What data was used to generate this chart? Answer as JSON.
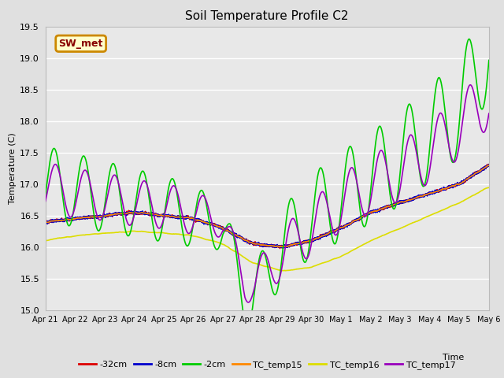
{
  "title": "Soil Temperature Profile C2",
  "xlabel": "Time",
  "ylabel": "Temperature (C)",
  "ylim": [
    15.0,
    19.5
  ],
  "xlim": [
    0,
    360
  ],
  "background_color": "#e0e0e0",
  "plot_bg_color": "#e8e8e8",
  "grid_color": "#ffffff",
  "annotation_text": "SW_met",
  "annotation_bg": "#ffffcc",
  "annotation_border": "#cc8800",
  "annotation_text_color": "#880000",
  "tick_labels": [
    "Apr 21",
    "Apr 22",
    "Apr 23",
    "Apr 24",
    "Apr 25",
    "Apr 26",
    "Apr 27",
    "Apr 28",
    "Apr 29",
    "Apr 30",
    "May 1",
    "May 2",
    "May 3",
    "May 4",
    "May 5",
    "May 6"
  ],
  "tick_positions": [
    0,
    24,
    48,
    72,
    96,
    120,
    144,
    168,
    192,
    216,
    240,
    264,
    288,
    312,
    336,
    360
  ],
  "series": {
    "neg32cm": {
      "color": "#dd0000",
      "label": "-32cm",
      "linewidth": 1.2
    },
    "neg8cm": {
      "color": "#0000cc",
      "label": "-8cm",
      "linewidth": 1.2
    },
    "neg2cm": {
      "color": "#00cc00",
      "label": "-2cm",
      "linewidth": 1.2
    },
    "TC15": {
      "color": "#ff8800",
      "label": "TC_temp15",
      "linewidth": 1.2
    },
    "TC16": {
      "color": "#dddd00",
      "label": "TC_temp16",
      "linewidth": 1.2
    },
    "TC17": {
      "color": "#9900bb",
      "label": "TC_temp17",
      "linewidth": 1.2
    }
  }
}
